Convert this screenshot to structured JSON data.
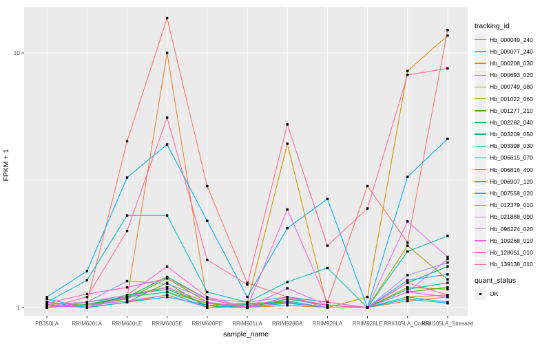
{
  "figure": {
    "xlabel": "sample_name",
    "ylabel": "FPKM + 1",
    "legend_tracking_title": "tracking_id",
    "legend_quant_title": "quant_status",
    "quant_ok_label": "OK"
  },
  "colors": {
    "panel_bg": "#EBEBEB",
    "grid": "#FFFFFF",
    "axis_text": "#4D4D4D",
    "tick_mark": "#333333",
    "marker": "#000000",
    "legend_key_bg": "#F0F0F0"
  },
  "chart_data": {
    "type": "line",
    "title": "",
    "xlabel": "sample_name",
    "ylabel": "FPKM + 1",
    "y_scale": "log10",
    "y_ticks": [
      1,
      10
    ],
    "y_minor_ticks": [
      3.162
    ],
    "ylim": [
      0.93,
      15.2
    ],
    "grid": true,
    "legend_position": "right",
    "point_shape": "filled-square",
    "quant_status": "OK",
    "categories": [
      "PB350LA",
      "RRIM600LA",
      "RRIM600LE",
      "RRIM600SE",
      "RRIM600PE",
      "RRIM901LA",
      "RRIM928BA",
      "RRIM928LA",
      "RRIM928LE",
      "RRII105LA_Control",
      "RRII105LA_Stressed"
    ],
    "series": [
      {
        "name": "Hb_000049_240",
        "color": "#F8766D",
        "values": [
          1.0,
          1.05,
          4.5,
          13.7,
          3.0,
          1.25,
          1.1,
          1.05,
          3.0,
          1.8,
          12.3
        ]
      },
      {
        "name": "Hb_000077_240",
        "color": "#EA8331",
        "values": [
          1.05,
          1.0,
          1.09,
          10.0,
          1.05,
          1.0,
          1.02,
          1.0,
          1.0,
          1.06,
          1.1
        ]
      },
      {
        "name": "Hb_000208_030",
        "color": "#D89000",
        "values": [
          1.02,
          1.0,
          1.05,
          1.12,
          1.0,
          1.04,
          4.4,
          1.0,
          1.1,
          8.5,
          11.7
        ]
      },
      {
        "name": "Hb_000693_020",
        "color": "#C09B00",
        "values": [
          1.05,
          1.02,
          1.1,
          1.15,
          1.04,
          1.0,
          1.08,
          1.02,
          1.0,
          1.1,
          1.12
        ]
      },
      {
        "name": "Hb_000749_080",
        "color": "#A3A500",
        "values": [
          1.03,
          1.0,
          1.12,
          1.2,
          1.02,
          1.04,
          1.05,
          1.0,
          1.0,
          1.75,
          1.29
        ]
      },
      {
        "name": "Hb_001022_060",
        "color": "#7CAE00",
        "values": [
          1.0,
          1.02,
          1.08,
          1.3,
          1.05,
          1.0,
          1.1,
          1.05,
          1.0,
          1.2,
          1.18
        ]
      },
      {
        "name": "Hb_001277_210",
        "color": "#39B600",
        "values": [
          1.02,
          1.0,
          1.05,
          1.25,
          1.0,
          1.02,
          1.05,
          1.0,
          1.0,
          1.15,
          1.2
        ]
      },
      {
        "name": "Hb_002282_040",
        "color": "#00BB4E",
        "values": [
          1.0,
          1.03,
          1.1,
          1.32,
          1.08,
          1.0,
          1.08,
          1.02,
          1.0,
          1.25,
          1.45
        ]
      },
      {
        "name": "Hb_003209_050",
        "color": "#00BF7D",
        "values": [
          1.02,
          1.0,
          1.12,
          1.18,
          1.02,
          1.0,
          1.05,
          1.0,
          1.0,
          1.18,
          1.25
        ]
      },
      {
        "name": "Hb_003398_030",
        "color": "#00C1A3",
        "values": [
          1.0,
          1.05,
          1.1,
          1.15,
          1.0,
          1.03,
          1.06,
          1.0,
          1.0,
          1.66,
          1.91
        ]
      },
      {
        "name": "Hb_006615_070",
        "color": "#00BFC4",
        "values": [
          1.05,
          1.28,
          2.3,
          2.3,
          1.15,
          1.05,
          1.26,
          1.43,
          1.0,
          1.1,
          1.05
        ]
      },
      {
        "name": "Hb_006816_400",
        "color": "#00BAE0",
        "values": [
          1.08,
          1.0,
          1.05,
          1.1,
          1.02,
          1.0,
          1.04,
          1.0,
          1.0,
          1.08,
          1.04
        ]
      },
      {
        "name": "Hb_006907_120",
        "color": "#00B0F6",
        "values": [
          1.1,
          1.39,
          3.24,
          4.37,
          2.19,
          1.1,
          2.05,
          2.67,
          1.0,
          3.26,
          4.6
        ]
      },
      {
        "name": "Hb_007558_020",
        "color": "#35A2FF",
        "values": [
          1.05,
          1.0,
          1.1,
          1.2,
          1.05,
          1.0,
          1.1,
          1.05,
          1.0,
          1.28,
          1.35
        ]
      },
      {
        "name": "Hb_012379_010",
        "color": "#9590FF",
        "values": [
          1.03,
          1.05,
          1.27,
          1.24,
          1.08,
          1.05,
          1.1,
          1.0,
          1.0,
          1.34,
          1.5
        ]
      },
      {
        "name": "Hb_021888_090",
        "color": "#C77CFF",
        "values": [
          1.0,
          1.02,
          1.06,
          1.12,
          1.0,
          1.0,
          1.05,
          1.0,
          1.0,
          1.15,
          1.55
        ]
      },
      {
        "name": "Hb_096224_020",
        "color": "#E76BF3",
        "values": [
          1.02,
          1.0,
          1.1,
          1.2,
          1.05,
          1.0,
          1.19,
          1.02,
          1.0,
          2.18,
          1.58
        ]
      },
      {
        "name": "Hb_109268_010",
        "color": "#FA62DB",
        "values": [
          1.0,
          1.05,
          1.12,
          1.45,
          1.1,
          1.0,
          2.43,
          1.05,
          1.0,
          1.15,
          1.1
        ]
      },
      {
        "name": "Hb_128051_010",
        "color": "#FF62BC",
        "values": [
          1.04,
          1.13,
          1.2,
          1.3,
          1.08,
          1.0,
          1.1,
          1.02,
          1.0,
          1.25,
          1.12
        ]
      },
      {
        "name": "Hb_139138_010",
        "color": "#FF6A98",
        "values": [
          1.0,
          1.1,
          2.0,
          5.57,
          1.54,
          1.23,
          5.24,
          1.75,
          2.45,
          8.2,
          8.7
        ]
      }
    ]
  }
}
